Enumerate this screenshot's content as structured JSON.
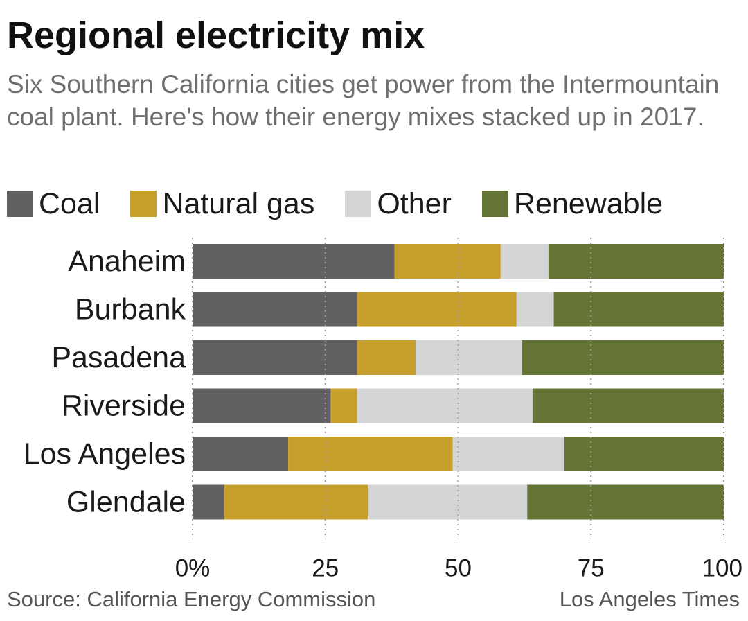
{
  "header": {
    "title": "Regional electricity mix",
    "subtitle": "Six Southern California cities get power from the Intermountain coal plant. Here's how their energy mixes stacked up in 2017."
  },
  "legend": {
    "items": [
      {
        "label": "Coal",
        "color": "#616163"
      },
      {
        "label": "Natural gas",
        "color": "#c79f2c"
      },
      {
        "label": "Other",
        "color": "#d4d5d6"
      },
      {
        "label": "Renewable",
        "color": "#637435"
      }
    ],
    "placement": "top"
  },
  "chart_data": {
    "type": "bar",
    "orientation": "horizontal",
    "stacked": true,
    "categories": [
      "Anaheim",
      "Burbank",
      "Pasadena",
      "Riverside",
      "Los Angeles",
      "Glendale"
    ],
    "series": [
      {
        "name": "Coal",
        "color": "#616163",
        "values": [
          38,
          31,
          31,
          26,
          18,
          6
        ]
      },
      {
        "name": "Natural gas",
        "color": "#c79f2c",
        "values": [
          20,
          30,
          11,
          5,
          31,
          27
        ]
      },
      {
        "name": "Other",
        "color": "#d4d5d6",
        "values": [
          9,
          7,
          20,
          33,
          21,
          30
        ]
      },
      {
        "name": "Renewable",
        "color": "#637435",
        "values": [
          33,
          32,
          38,
          36,
          30,
          37
        ]
      }
    ],
    "xlim": [
      0,
      100
    ],
    "xticks": [
      0,
      25,
      50,
      75,
      100
    ],
    "xtick_labels": [
      "0%",
      "25",
      "50",
      "75",
      "100"
    ],
    "grid": "vertical dotted"
  },
  "footer": {
    "source": "Source: California Energy Commission",
    "credit": "Los Angeles Times"
  }
}
